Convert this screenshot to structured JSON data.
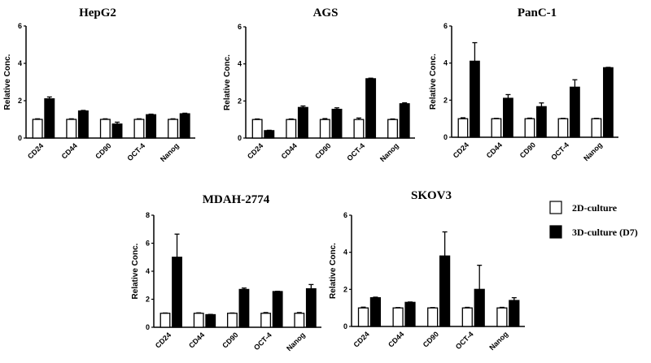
{
  "chart_data": [
    {
      "type": "bar",
      "title": "HepG2",
      "ylabel": "Relative Conc.",
      "ylim": [
        0,
        6
      ],
      "yticks": [
        0,
        2,
        4,
        6
      ],
      "categories": [
        "CD24",
        "CD44",
        "CD90",
        "OCT-4",
        "Nanog"
      ],
      "series": [
        {
          "name": "2D-culture",
          "values": [
            1,
            1,
            1,
            1,
            1
          ],
          "errors": [
            0.03,
            0.03,
            0.03,
            0.03,
            0.03
          ]
        },
        {
          "name": "3D-culture (D7)",
          "values": [
            2.1,
            1.45,
            0.75,
            1.25,
            1.3
          ],
          "errors": [
            0.1,
            0.03,
            0.1,
            0.03,
            0.03
          ]
        }
      ]
    },
    {
      "type": "bar",
      "title": "AGS",
      "ylabel": "Relative Conc.",
      "ylim": [
        0,
        6
      ],
      "yticks": [
        0,
        2,
        4,
        6
      ],
      "categories": [
        "CD24",
        "CD44",
        "CD90",
        "OCT-4",
        "Nanog"
      ],
      "series": [
        {
          "name": "2D-culture",
          "values": [
            1,
            1,
            1,
            1,
            1
          ],
          "errors": [
            0.03,
            0.03,
            0.05,
            0.08,
            0.03
          ]
        },
        {
          "name": "3D-culture (D7)",
          "values": [
            0.4,
            1.65,
            1.55,
            3.2,
            1.85
          ],
          "errors": [
            0.02,
            0.08,
            0.08,
            0.03,
            0.05
          ]
        }
      ]
    },
    {
      "type": "bar",
      "title": "PanC-1",
      "ylabel": "Relative Conc.",
      "ylim": [
        0,
        6
      ],
      "yticks": [
        0,
        2,
        4,
        6
      ],
      "categories": [
        "CD24",
        "CD44",
        "CD90",
        "OCT-4",
        "Nanog"
      ],
      "series": [
        {
          "name": "2D-culture",
          "values": [
            1,
            1,
            1,
            1,
            1
          ],
          "errors": [
            0.05,
            0.02,
            0.03,
            0.02,
            0.02
          ]
        },
        {
          "name": "3D-culture (D7)",
          "values": [
            4.1,
            2.1,
            1.65,
            2.7,
            3.75
          ],
          "errors": [
            1.0,
            0.2,
            0.2,
            0.4,
            0.02
          ]
        }
      ]
    },
    {
      "type": "bar",
      "title": "MDAH-2774",
      "ylabel": "Relative Conc.",
      "ylim": [
        0,
        8
      ],
      "yticks": [
        0,
        2,
        4,
        6,
        8
      ],
      "categories": [
        "CD24",
        "CD44",
        "CD90",
        "OCT-4",
        "Nanog"
      ],
      "series": [
        {
          "name": "2D-culture",
          "values": [
            1,
            1,
            1,
            1,
            1
          ],
          "errors": [
            0.02,
            0.03,
            0.02,
            0.05,
            0.05
          ]
        },
        {
          "name": "3D-culture (D7)",
          "values": [
            5.0,
            0.9,
            2.7,
            2.55,
            2.75
          ],
          "errors": [
            1.65,
            0.02,
            0.1,
            0.02,
            0.3
          ]
        }
      ]
    },
    {
      "type": "bar",
      "title": "SKOV3",
      "ylabel": "Relative Conc.",
      "ylim": [
        0,
        6
      ],
      "yticks": [
        0,
        2,
        4,
        6
      ],
      "categories": [
        "CD24",
        "CD44",
        "CD90",
        "OCT-4",
        "Nanog"
      ],
      "series": [
        {
          "name": "2D-culture",
          "values": [
            1,
            1,
            1,
            1,
            1
          ],
          "errors": [
            0.04,
            0.02,
            0.02,
            0.03,
            0.03
          ]
        },
        {
          "name": "3D-culture (D7)",
          "values": [
            1.55,
            1.3,
            3.8,
            2.0,
            1.4
          ],
          "errors": [
            0.03,
            0.02,
            1.3,
            1.3,
            0.15
          ]
        }
      ]
    }
  ],
  "legend": {
    "placement": "right",
    "items": [
      {
        "label": "2D-culture",
        "color": "#ffffff"
      },
      {
        "label": "3D-culture (D7)",
        "color": "#000000"
      }
    ]
  }
}
